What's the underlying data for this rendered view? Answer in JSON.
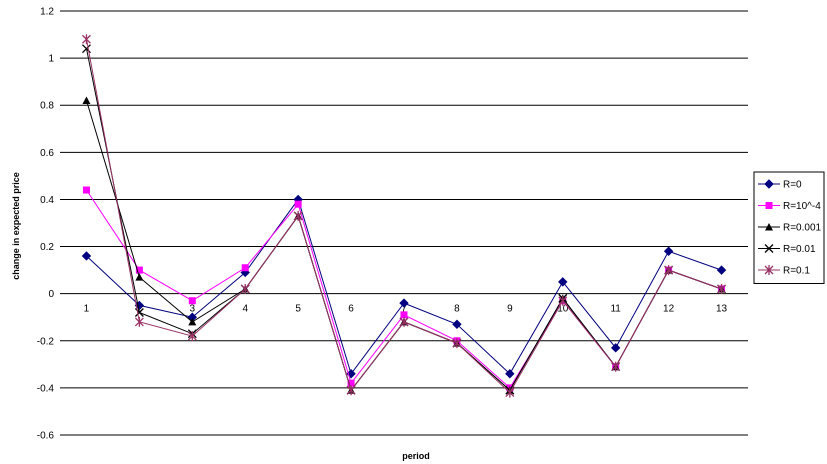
{
  "chart_data": {
    "type": "line",
    "title": "",
    "xlabel": "period",
    "ylabel": "change in expected price",
    "x": [
      1,
      2,
      3,
      4,
      5,
      6,
      7,
      8,
      9,
      10,
      11,
      12,
      13
    ],
    "ylim": [
      -0.6,
      1.2
    ],
    "yticks": [
      -0.6,
      -0.4,
      -0.2,
      0,
      0.2,
      0.4,
      0.6,
      0.8,
      1,
      1.2
    ],
    "grid": "horizontal",
    "legend_position": "right",
    "series": [
      {
        "name": "R=0",
        "color": "#000080",
        "marker": "diamond",
        "values": [
          0.16,
          -0.05,
          -0.1,
          0.09,
          0.4,
          -0.34,
          -0.04,
          -0.13,
          -0.34,
          0.05,
          -0.23,
          0.18,
          0.1
        ]
      },
      {
        "name": "R=10^-4",
        "color": "#ff00ff",
        "marker": "square",
        "values": [
          0.44,
          0.1,
          -0.03,
          0.11,
          0.38,
          -0.38,
          -0.09,
          -0.2,
          -0.4,
          -0.03,
          -0.31,
          0.1,
          0.02
        ]
      },
      {
        "name": "R=0.001",
        "color": "#000000",
        "marker": "triangle",
        "values": [
          0.82,
          0.07,
          -0.12,
          0.02,
          0.33,
          -0.41,
          -0.12,
          -0.21,
          -0.41,
          -0.02,
          -0.31,
          0.1,
          0.02
        ]
      },
      {
        "name": "R=0.01",
        "color": "#000000",
        "marker": "x",
        "values": [
          1.04,
          -0.08,
          -0.17,
          0.02,
          0.33,
          -0.41,
          -0.12,
          -0.21,
          -0.41,
          -0.02,
          -0.31,
          0.1,
          0.02
        ]
      },
      {
        "name": "R=0.1",
        "color": "#993366",
        "marker": "star",
        "values": [
          1.08,
          -0.12,
          -0.18,
          0.02,
          0.33,
          -0.41,
          -0.12,
          -0.21,
          -0.42,
          -0.03,
          -0.31,
          0.1,
          0.02
        ]
      }
    ]
  }
}
